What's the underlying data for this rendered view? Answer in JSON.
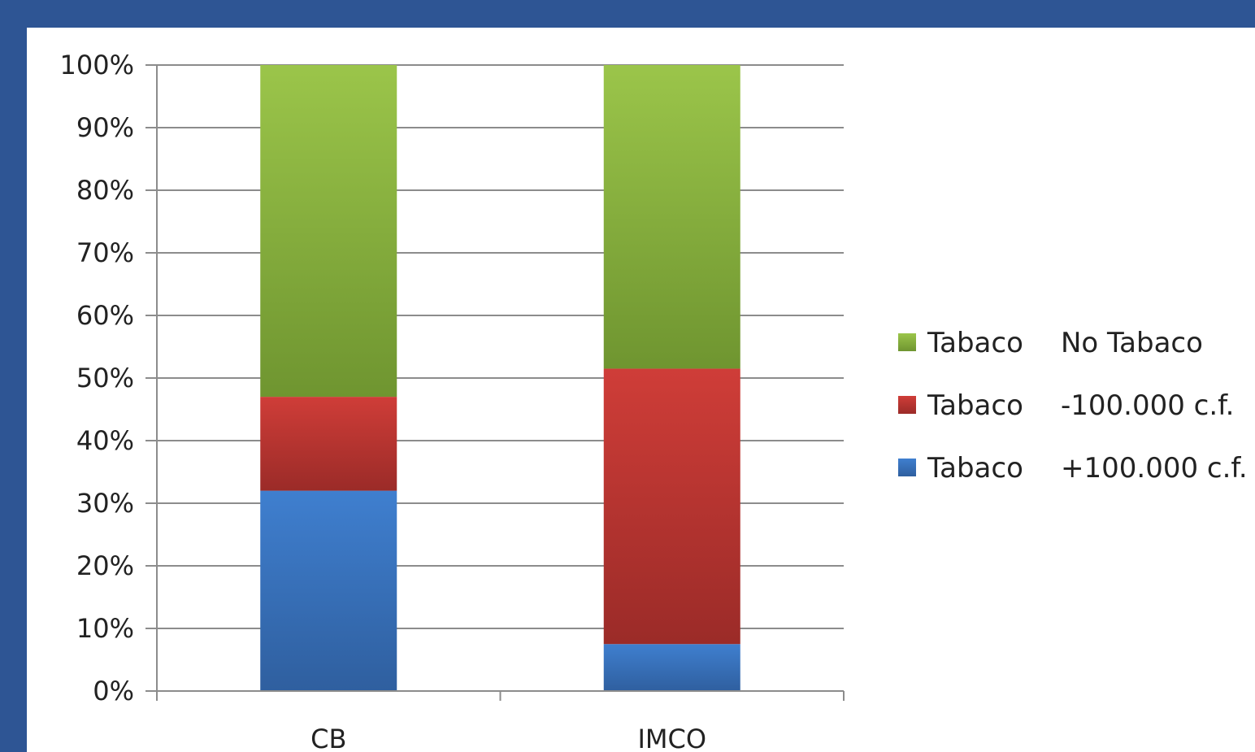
{
  "chart_data": {
    "type": "bar",
    "stacked": true,
    "percent": true,
    "categories": [
      "CB",
      "IMCO"
    ],
    "series": [
      {
        "name": "Tabaco    +100.000 c.f.",
        "label_left": "Tabaco",
        "label_right": "+100.000 c.f.",
        "values": [
          32,
          7.5
        ],
        "color_top": "#3f7fcf",
        "color_bottom": "#2f5f9f"
      },
      {
        "name": "Tabaco    -100.000 c.f.",
        "label_left": "Tabaco",
        "label_right": "-100.000 c.f.",
        "values": [
          15,
          44
        ],
        "color_top": "#cf3d38",
        "color_bottom": "#9b2b28"
      },
      {
        "name": "Tabaco    No Tabaco",
        "label_left": "Tabaco",
        "label_right": "No Tabaco",
        "values": [
          53,
          48.5
        ],
        "color_top": "#9bc54a",
        "color_bottom": "#6f9530"
      }
    ],
    "ylim": [
      0,
      100
    ],
    "y_ticks": [
      "0%",
      "10%",
      "20%",
      "30%",
      "40%",
      "50%",
      "60%",
      "70%",
      "80%",
      "90%",
      "100%"
    ],
    "grid": true,
    "legend_position": "right"
  }
}
